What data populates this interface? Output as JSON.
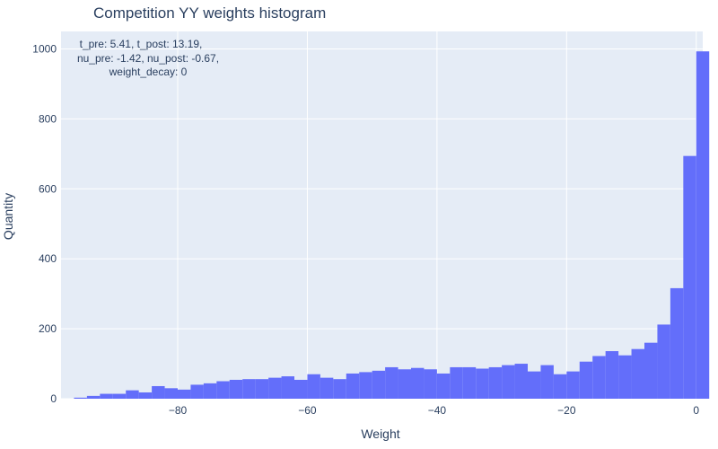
{
  "chart_data": {
    "type": "bar",
    "title": "Competition YY weights histogram",
    "xlabel": "Weight",
    "ylabel": "Quantity",
    "xlim": [
      -98,
      1
    ],
    "ylim": [
      0,
      1050
    ],
    "bar_color": "#636efa",
    "plot_bg": "#e5ecf6",
    "text_color": "#2a3f5f",
    "grid": true,
    "x_ticks": [
      -80,
      -60,
      -40,
      -20,
      0
    ],
    "x_tick_labels": [
      "−80",
      "−60",
      "−40",
      "−20",
      "0"
    ],
    "y_ticks": [
      0,
      200,
      400,
      600,
      800,
      1000
    ],
    "y_tick_labels": [
      "0",
      "200",
      "400",
      "600",
      "800",
      "1000"
    ],
    "bin_width": 2,
    "bins_start": [
      -96,
      -94,
      -92,
      -90,
      -88,
      -86,
      -84,
      -82,
      -80,
      -78,
      -76,
      -74,
      -72,
      -70,
      -68,
      -66,
      -64,
      -62,
      -60,
      -58,
      -56,
      -54,
      -52,
      -50,
      -48,
      -46,
      -44,
      -42,
      -40,
      -38,
      -36,
      -34,
      -32,
      -30,
      -28,
      -26,
      -24,
      -22,
      -20,
      -18,
      -16,
      -14,
      -12,
      -10,
      -8,
      -6,
      -4,
      -2,
      0
    ],
    "values": [
      3,
      8,
      14,
      14,
      24,
      18,
      36,
      30,
      26,
      40,
      44,
      50,
      54,
      56,
      56,
      60,
      64,
      54,
      70,
      60,
      56,
      72,
      76,
      80,
      90,
      84,
      88,
      84,
      72,
      90,
      90,
      86,
      90,
      96,
      100,
      78,
      96,
      70,
      78,
      106,
      122,
      136,
      124,
      142,
      160,
      212,
      316,
      694,
      993
    ],
    "annotation": [
      "t_pre: 5.41, t_post: 13.19,",
      "nu_pre: -1.42, nu_post: -0.67,",
      "weight_decay: 0"
    ]
  }
}
